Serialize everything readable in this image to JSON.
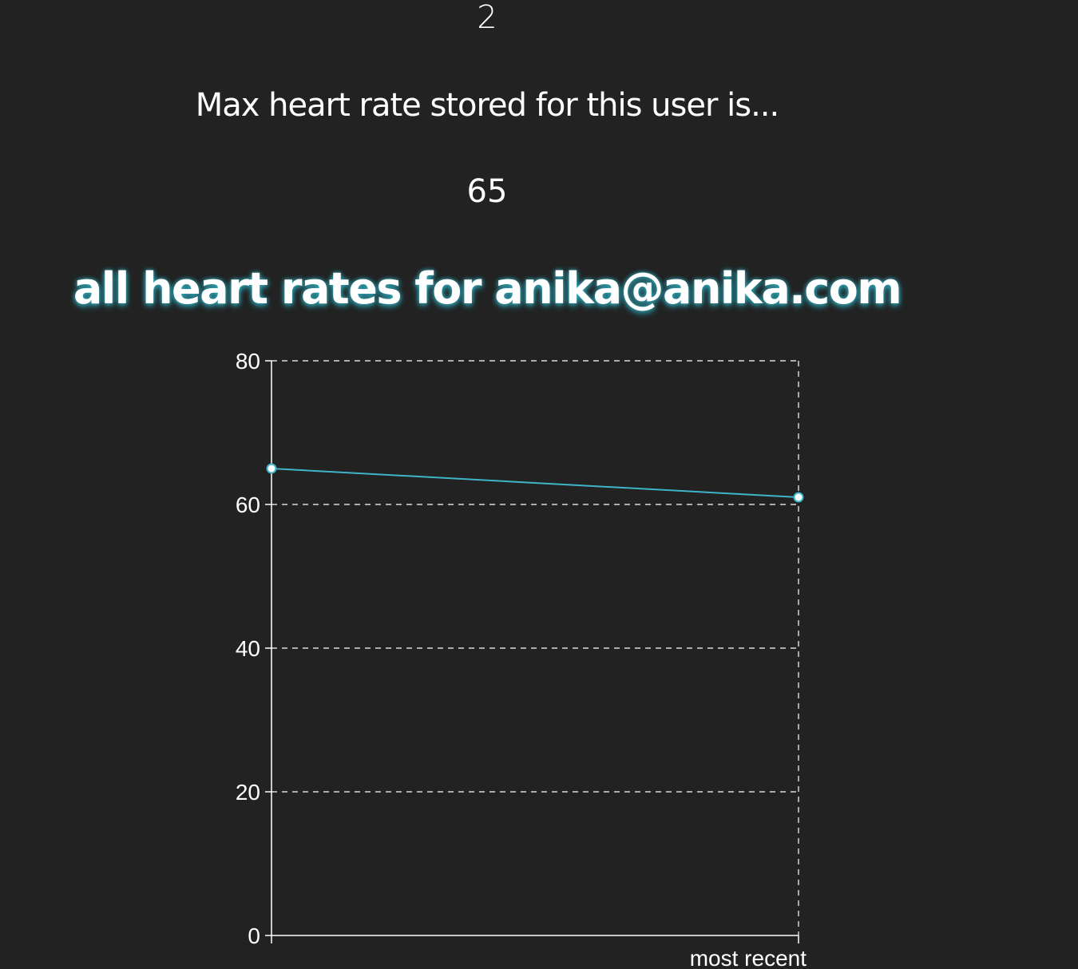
{
  "count": {
    "value": "2"
  },
  "max_heart_rate": {
    "label": "Max heart rate stored for this user is...",
    "value": "65"
  },
  "chart_title": "all heart rates for anika@anika.com",
  "colors": {
    "background": "#222222",
    "text": "#ffffff",
    "line": "#3fb4c8",
    "title_glow": "#33aabb"
  },
  "chart_data": {
    "type": "line",
    "title": "all heart rates for anika@anika.com",
    "x": [
      "",
      "most recent"
    ],
    "series": [
      {
        "values": [
          65,
          61
        ]
      }
    ],
    "xlabel": "",
    "ylabel": "",
    "ylim": [
      0,
      80
    ],
    "yticks": [
      0,
      20,
      40,
      60,
      80
    ],
    "grid": true,
    "grid_style": "dashed"
  }
}
